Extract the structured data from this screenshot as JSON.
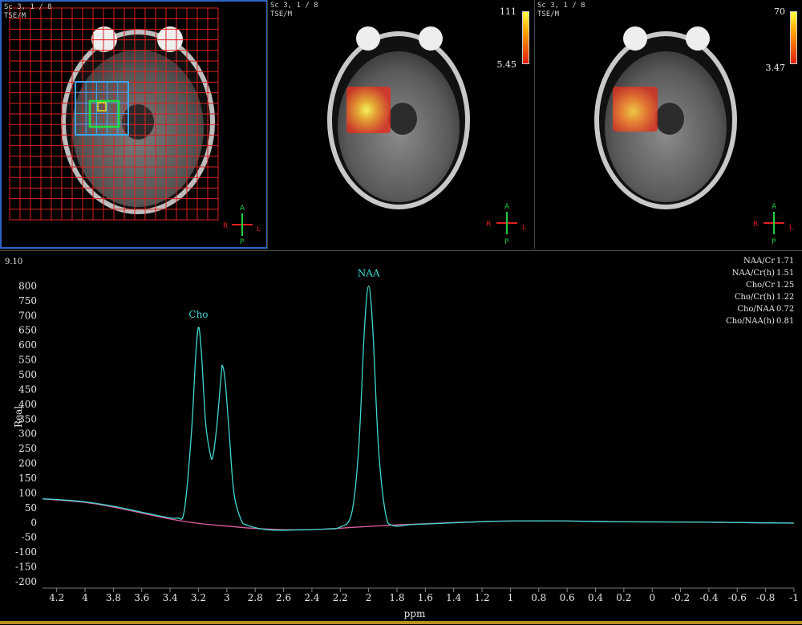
{
  "viewers": [
    {
      "series_label": "Sc 3, 1 / 8",
      "sequence": "TSE/M",
      "orientation": {
        "top": "A",
        "bottom": "P",
        "left": "R",
        "right": "L"
      }
    },
    {
      "series_label": "Sc 3, 1 / 8",
      "sequence": "TSE/M",
      "colorbar": {
        "max": "111",
        "min": "5.45"
      },
      "orientation": {
        "top": "A",
        "bottom": "P",
        "left": "R",
        "right": "L"
      }
    },
    {
      "series_label": "Sc 3, 1 / 8",
      "sequence": "TSE/M",
      "colorbar": {
        "max": "70",
        "min": "3.47"
      },
      "orientation": {
        "top": "A",
        "bottom": "P",
        "left": "R",
        "right": "L"
      }
    }
  ],
  "spectrum": {
    "corner_value": "9.10",
    "ratios": [
      {
        "label": "NAA/Cr",
        "value": "1.71"
      },
      {
        "label": "NAA/Cr(h)",
        "value": "1.51"
      },
      {
        "label": "Cho/Cr",
        "value": "1.25"
      },
      {
        "label": "Cho/Cr(h)",
        "value": "1.22"
      },
      {
        "label": "Cho/NAA",
        "value": "0.72"
      },
      {
        "label": "Cho/NAA(h)",
        "value": "0.81"
      }
    ]
  },
  "chart_data": {
    "type": "line",
    "title": "",
    "xlabel": "ppm",
    "ylabel": "Real",
    "x_reversed": true,
    "xlim": [
      4.3,
      -1.0
    ],
    "ylim": [
      -200,
      850
    ],
    "x_ticks": [
      "4.2",
      "4",
      "3.8",
      "3.6",
      "3.4",
      "3.2",
      "3",
      "2.8",
      "2.6",
      "2.4",
      "2.2",
      "2",
      "1.8",
      "1.6",
      "1.4",
      "1.2",
      "1",
      "0.8",
      "0.6",
      "0.4",
      "0.2",
      "0",
      "-0.2",
      "-0.4",
      "-0.6",
      "-0.8",
      "-1"
    ],
    "y_ticks": [
      "800",
      "750",
      "700",
      "650",
      "600",
      "550",
      "500",
      "450",
      "400",
      "350",
      "300",
      "250",
      "200",
      "150",
      "100",
      "50",
      "0",
      "-50",
      "-100",
      "-150",
      "-200"
    ],
    "peaks": [
      {
        "label": "Cho",
        "ppm": 3.2,
        "value": 660
      },
      {
        "label": "",
        "ppm": 3.03,
        "value": 530
      },
      {
        "label": "NAA",
        "ppm": 2.0,
        "value": 800
      }
    ],
    "series": [
      {
        "color": "#40d8d0",
        "points": [
          [
            4.3,
            80
          ],
          [
            4.2,
            78
          ],
          [
            4.0,
            70
          ],
          [
            3.8,
            55
          ],
          [
            3.6,
            35
          ],
          [
            3.45,
            20
          ],
          [
            3.35,
            15
          ],
          [
            3.3,
            40
          ],
          [
            3.25,
            300
          ],
          [
            3.22,
            560
          ],
          [
            3.2,
            660
          ],
          [
            3.18,
            580
          ],
          [
            3.15,
            340
          ],
          [
            3.12,
            240
          ],
          [
            3.1,
            220
          ],
          [
            3.07,
            330
          ],
          [
            3.04,
            500
          ],
          [
            3.03,
            530
          ],
          [
            3.01,
            470
          ],
          [
            2.98,
            280
          ],
          [
            2.95,
            100
          ],
          [
            2.9,
            10
          ],
          [
            2.85,
            -10
          ],
          [
            2.7,
            -25
          ],
          [
            2.5,
            -25
          ],
          [
            2.3,
            -22
          ],
          [
            2.2,
            -15
          ],
          [
            2.12,
            30
          ],
          [
            2.07,
            250
          ],
          [
            2.03,
            650
          ],
          [
            2.0,
            800
          ],
          [
            1.97,
            650
          ],
          [
            1.93,
            250
          ],
          [
            1.88,
            30
          ],
          [
            1.83,
            -10
          ],
          [
            1.7,
            -7
          ],
          [
            1.5,
            -3
          ],
          [
            1.2,
            3
          ],
          [
            1.0,
            5
          ],
          [
            0.6,
            5
          ],
          [
            0.3,
            3
          ],
          [
            0.0,
            2
          ],
          [
            -0.4,
            1
          ],
          [
            -0.8,
            -1
          ],
          [
            -1.0,
            -2
          ]
        ]
      },
      {
        "color": "#e060a0",
        "points": [
          [
            4.3,
            80
          ],
          [
            4.0,
            68
          ],
          [
            3.8,
            52
          ],
          [
            3.6,
            32
          ],
          [
            3.4,
            12
          ],
          [
            3.2,
            -3
          ],
          [
            3.0,
            -12
          ],
          [
            2.8,
            -20
          ],
          [
            2.6,
            -24
          ],
          [
            2.4,
            -24
          ],
          [
            2.2,
            -19
          ],
          [
            2.0,
            -13
          ],
          [
            1.8,
            -8
          ],
          [
            1.6,
            -4
          ],
          [
            1.4,
            0
          ],
          [
            1.2,
            3
          ],
          [
            1.0,
            5
          ],
          [
            0.6,
            5
          ],
          [
            0.3,
            3
          ],
          [
            0.0,
            2
          ],
          [
            -0.4,
            1
          ],
          [
            -0.8,
            -1
          ],
          [
            -1.0,
            -2
          ]
        ]
      }
    ]
  }
}
